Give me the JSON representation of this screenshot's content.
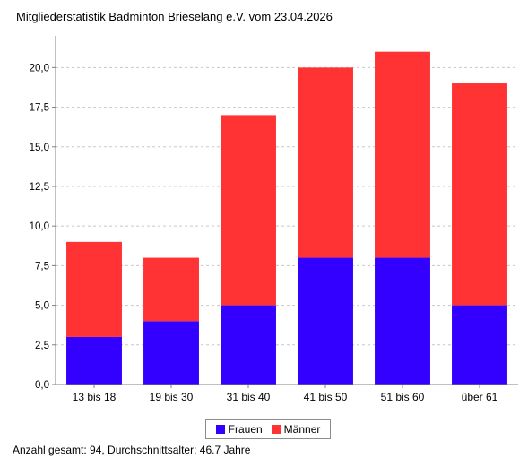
{
  "colors": {
    "frauen": "#3300ff",
    "maenner": "#ff3333",
    "grid": "#c8c8c8",
    "axis": "#808080"
  },
  "footer": "Anzahl gesamt: 94, Durchschnittsalter: 46.7 Jahre",
  "chart_data": {
    "type": "bar",
    "stacked": true,
    "title": "Mitgliederstatistik Badminton Brieselang e.V. vom 23.04.2026",
    "xlabel": "",
    "ylabel": "",
    "categories": [
      "13 bis 18",
      "19 bis 30",
      "31 bis 40",
      "41 bis 50",
      "51 bis 60",
      "über 61"
    ],
    "series": [
      {
        "name": "Frauen",
        "values": [
          3,
          4,
          5,
          8,
          8,
          5
        ]
      },
      {
        "name": "Männer",
        "values": [
          6,
          4,
          12,
          12,
          13,
          14
        ]
      }
    ],
    "ylim": [
      0,
      22
    ],
    "yticks": [
      "0,0",
      "2,5",
      "5,0",
      "7,5",
      "10,0",
      "12,5",
      "15,0",
      "17,5",
      "20,0"
    ],
    "ytick_values": [
      0,
      2.5,
      5,
      7.5,
      10,
      12.5,
      15,
      17.5,
      20
    ],
    "grid": true,
    "legend_position": "bottom"
  }
}
